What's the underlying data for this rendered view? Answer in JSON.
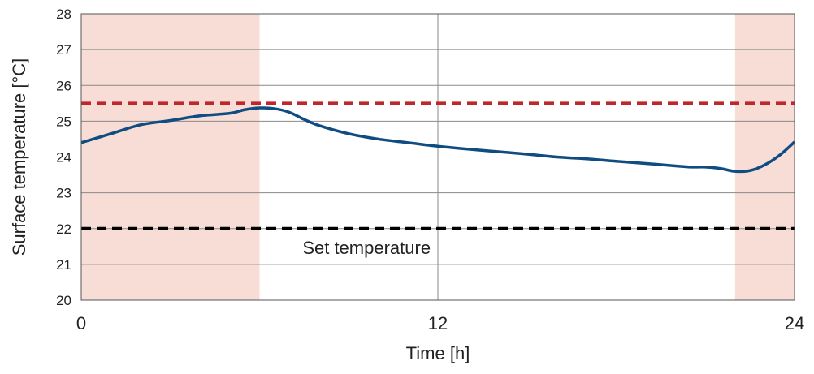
{
  "chart_data": {
    "type": "line",
    "title": "",
    "xlabel": "Time [h]",
    "ylabel": "Surface temperature [°C]",
    "xlim": [
      0,
      24
    ],
    "ylim": [
      20,
      28
    ],
    "x_ticks": [
      0,
      12,
      24
    ],
    "x_tick_labels": [
      "0",
      "12",
      "24"
    ],
    "y_ticks": [
      20,
      21,
      22,
      23,
      24,
      25,
      26,
      27,
      28
    ],
    "y_tick_labels": [
      "20",
      "21",
      "22",
      "23",
      "24",
      "25",
      "26",
      "27",
      "28"
    ],
    "grid": true,
    "shaded_regions": [
      {
        "x_start": 0,
        "x_end": 6,
        "color": "#f7ddd6"
      },
      {
        "x_start": 22,
        "x_end": 24,
        "color": "#f7ddd6"
      }
    ],
    "reference_lines": [
      {
        "y": 25.5,
        "style": "dashed",
        "color": "#c0272d"
      },
      {
        "y": 22.0,
        "style": "dashed",
        "color": "#000000",
        "label": "Set temperature"
      }
    ],
    "series": [
      {
        "color": "#0f4c81",
        "x": [
          0,
          1,
          2,
          3,
          4,
          5,
          5.5,
          6,
          6.5,
          7,
          7.5,
          8,
          9,
          10,
          11,
          12,
          13,
          14,
          15,
          16,
          17,
          18,
          19,
          20,
          20.5,
          21,
          21.5,
          22,
          22.5,
          23,
          23.5,
          24
        ],
        "y": [
          24.4,
          24.65,
          24.9,
          25.02,
          25.15,
          25.22,
          25.32,
          25.37,
          25.35,
          25.25,
          25.05,
          24.88,
          24.65,
          24.5,
          24.4,
          24.3,
          24.22,
          24.15,
          24.08,
          24.0,
          23.95,
          23.88,
          23.82,
          23.75,
          23.72,
          23.72,
          23.68,
          23.6,
          23.62,
          23.78,
          24.05,
          24.42
        ]
      }
    ]
  }
}
